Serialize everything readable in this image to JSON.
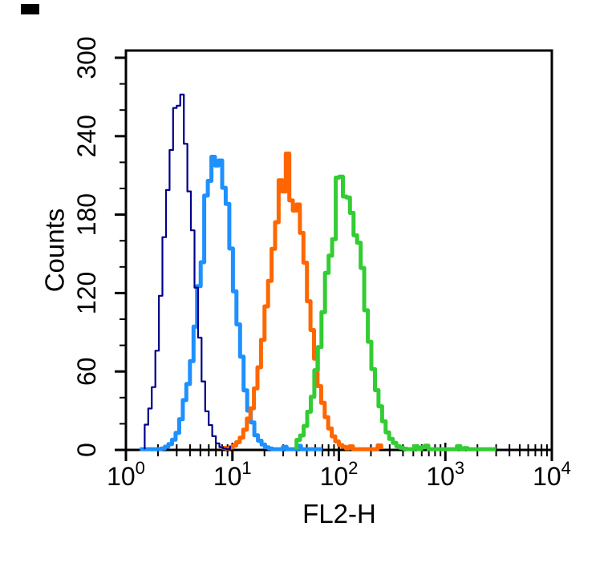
{
  "figure": {
    "background": "#ffffff",
    "has_corner_mark": true
  },
  "chart_data": {
    "type": "line",
    "subtype": "flow-cytometry-histogram",
    "title": "",
    "xlabel": "FL2-H",
    "ylabel": "Counts",
    "x_scale": "log10",
    "xlim": [
      1,
      10000
    ],
    "ylim": [
      0,
      300
    ],
    "grid": false,
    "legend": "none",
    "x_ticks": [
      {
        "base": "10",
        "exp": "0",
        "value": 1
      },
      {
        "base": "10",
        "exp": "1",
        "value": 10
      },
      {
        "base": "10",
        "exp": "2",
        "value": 100
      },
      {
        "base": "10",
        "exp": "3",
        "value": 1000
      },
      {
        "base": "10",
        "exp": "4",
        "value": 10000
      }
    ],
    "y_ticks": [
      0,
      60,
      120,
      180,
      240,
      300
    ],
    "y_minor_step": 20,
    "series": [
      {
        "name": "blue",
        "color": "#1E90FF",
        "line_width": 5,
        "peak_x": 6.8,
        "peak_y": 226,
        "sigma_decades": 0.155,
        "x_range": [
          1.35,
          70
        ],
        "points": {
          "x": [
            3,
            4,
            5,
            6.8,
            9,
            12,
            16,
            25
          ],
          "y": [
            16,
            75,
            157,
            226,
            166,
            64,
            13,
            1
          ]
        }
      },
      {
        "name": "orange",
        "color": "#FF6600",
        "line_width": 5,
        "peak_x": 32,
        "peak_y": 210,
        "sigma_decades": 0.175,
        "x_range": [
          8,
          250
        ],
        "points": {
          "x": [
            10,
            15,
            20,
            25,
            32,
            45,
            60,
            80,
            120
          ],
          "y": [
            3,
            36,
            106,
            174,
            210,
            147,
            62,
            16,
            1
          ]
        }
      },
      {
        "name": "green",
        "color": "#33CC33",
        "line_width": 5,
        "peak_x": 110,
        "peak_y": 210,
        "sigma_decades": 0.17,
        "x_range": [
          40,
          3000
        ],
        "points": {
          "x": [
            40,
            60,
            80,
            110,
            150,
            200,
            280,
            400,
            1000
          ],
          "y": [
            8,
            63,
            150,
            210,
            153,
            65,
            12,
            2,
            1
          ]
        }
      },
      {
        "name": "navy",
        "color": "#00008B",
        "line_width": 2.2,
        "peak_x": 3,
        "peak_y": 268,
        "sigma_decades": 0.13,
        "x_range": [
          1.5,
          9.5
        ],
        "points": {
          "x": [
            1.5,
            2,
            2.4,
            3,
            3.8,
            4.5,
            6,
            8
          ],
          "y": [
            4,
            107,
            203,
            268,
            203,
            107,
            18,
            1
          ]
        }
      }
    ]
  }
}
